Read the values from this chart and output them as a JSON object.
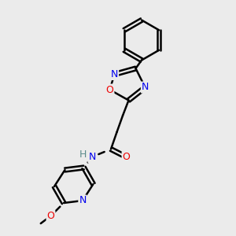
{
  "bg_color": "#ebebeb",
  "atom_color_N": "#0000ee",
  "atom_color_O": "#ee0000",
  "atom_color_H": "#5a8a8a",
  "bond_color": "#000000",
  "bond_width": 1.8,
  "figsize": [
    3.0,
    3.0
  ],
  "dpi": 100,
  "xlim": [
    0,
    10
  ],
  "ylim": [
    0,
    10
  ]
}
